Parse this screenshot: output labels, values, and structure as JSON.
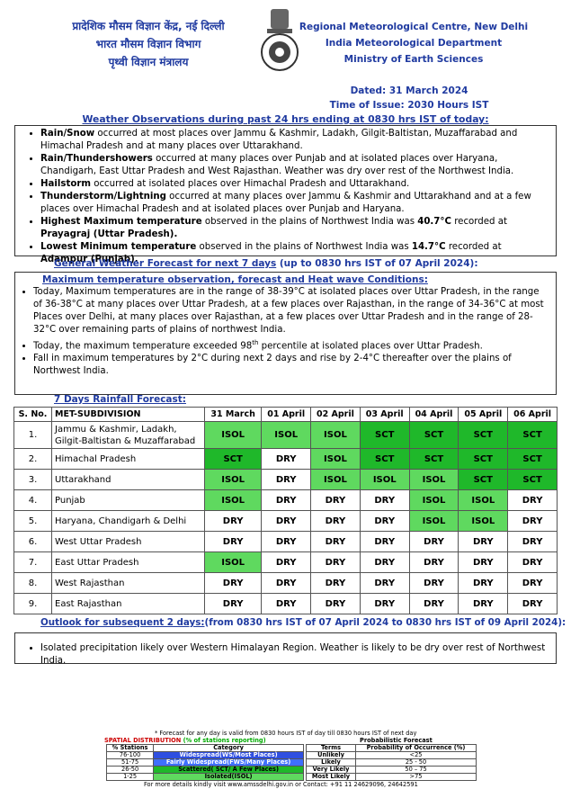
{
  "header": {
    "hindi_lines": [
      "प्रादेशिक मौसम विज्ञान केंद्र, नई दिल्ली",
      "भारत मौसम विज्ञान विभाग",
      "पृथ्वी विज्ञान मंत्रालय"
    ],
    "english_lines": [
      "Regional Meteorological Centre, New Delhi",
      "India Meteorological Department",
      "Ministry of Earth Sciences"
    ],
    "dated": "Dated: 31 March 2024",
    "time_of_issue": "Time of Issue: 2030 Hours IST"
  },
  "observations": {
    "title": "Weather Observations during past 24 hrs ending at 0830 hrs IST of today:",
    "bullets": [
      [
        {
          "text": "Rain/Snow",
          "bold": true
        },
        {
          "text": " occurred at most places over Jammu & Kashmir, Ladakh, Gilgit-Baltistan, Muzaffarabad and Himachal Pradesh and at many places over Uttarakhand."
        }
      ],
      [
        {
          "text": "Rain/Thundershowers",
          "bold": true
        },
        {
          "text": " occurred at many places over Punjab and at isolated places over Haryana, Chandigarh, East Uttar Pradesh and West Rajasthan. Weather was dry over rest of the Northwest India."
        }
      ],
      [
        {
          "text": "Hailstorm",
          "bold": true
        },
        {
          "text": " occurred at isolated places over Himachal Pradesh and Uttarakhand."
        }
      ],
      [
        {
          "text": "Thunderstorm/Lightning",
          "bold": true
        },
        {
          "text": " occurred at many places over Jammu & Kashmir and Uttarakhand and at a few places over Himachal Pradesh and at isolated places over Punjab and Haryana."
        }
      ],
      [
        {
          "text": "Highest Maximum temperature",
          "bold": true
        },
        {
          "text": " observed in the plains of Northwest India was "
        },
        {
          "text": "40.7°C",
          "bold": true
        },
        {
          "text": " recorded at "
        },
        {
          "text": "Prayagraj (Uttar Pradesh).",
          "bold": true
        }
      ],
      [
        {
          "text": "Lowest Minimum temperature",
          "bold": true
        },
        {
          "text": " observed in the plains of Northwest India was "
        },
        {
          "text": "14.7°C",
          "bold": true
        },
        {
          "text": " recorded at "
        },
        {
          "text": "Adampur (Punjab).",
          "bold": true
        }
      ]
    ]
  },
  "forecast": {
    "title": "General Weather Forecast for next 7 days",
    "title_suffix": " (up to 0830 hrs IST of 07 April 2024):",
    "subtitle": "Maximum temperature observation, forecast and Heat wave Conditions:",
    "bullets": [
      [
        {
          "text": "Today, Maximum temperatures are in the range of 38-39°C at isolated places over Uttar Pradesh, in the range of 36-38°C at many places over Uttar Pradesh, at a few places over Rajasthan, in the range of 34-36°C at most Places over Delhi, at many places over Rajasthan, at a few places over Uttar Pradesh and in the range of 28-32°C over remaining parts of plains of northwest India."
        }
      ],
      [
        {
          "text": "Today, the maximum temperature exceeded 98"
        },
        {
          "text": "th",
          "sup": true
        },
        {
          "text": " percentile at isolated places over Uttar Pradesh."
        }
      ],
      [
        {
          "text": "Fall in maximum temperatures by 2°C during next 2 days and rise by 2-4°C thereafter over the plains of Northwest India."
        }
      ]
    ]
  },
  "rainfall": {
    "title": "7 Days Rainfall Forecast:",
    "cell_colors": {
      "ISOL": "#5fd95f",
      "SCT": "#1fb82a"
    },
    "columns": [
      "S. No.",
      "MET-SUBDIVISION",
      "31 March",
      "01 April",
      "02 April",
      "03 April",
      "04 April",
      "05 April",
      "06 April"
    ],
    "rows": [
      {
        "no": "1.",
        "name": "Jammu & Kashmir, Ladakh, Gilgit-Baltistan & Muzaffarabad",
        "cells": [
          "ISOL",
          "ISOL",
          "ISOL",
          "SCT",
          "SCT",
          "SCT",
          "SCT"
        ]
      },
      {
        "no": "2.",
        "name": "Himachal Pradesh",
        "cells": [
          "SCT",
          "DRY",
          "ISOL",
          "SCT",
          "SCT",
          "SCT",
          "SCT"
        ]
      },
      {
        "no": "3.",
        "name": "Uttarakhand",
        "cells": [
          "ISOL",
          "DRY",
          "ISOL",
          "ISOL",
          "ISOL",
          "SCT",
          "SCT"
        ]
      },
      {
        "no": "4.",
        "name": "Punjab",
        "cells": [
          "ISOL",
          "DRY",
          "DRY",
          "DRY",
          "ISOL",
          "ISOL",
          "DRY"
        ]
      },
      {
        "no": "5.",
        "name": "Haryana, Chandigarh & Delhi",
        "cells": [
          "DRY",
          "DRY",
          "DRY",
          "DRY",
          "ISOL",
          "ISOL",
          "DRY"
        ]
      },
      {
        "no": "6.",
        "name": "West Uttar Pradesh",
        "cells": [
          "DRY",
          "DRY",
          "DRY",
          "DRY",
          "DRY",
          "DRY",
          "DRY"
        ]
      },
      {
        "no": "7.",
        "name": "East Uttar Pradesh",
        "cells": [
          "ISOL",
          "DRY",
          "DRY",
          "DRY",
          "DRY",
          "DRY",
          "DRY"
        ]
      },
      {
        "no": "8.",
        "name": "West Rajasthan",
        "cells": [
          "DRY",
          "DRY",
          "DRY",
          "DRY",
          "DRY",
          "DRY",
          "DRY"
        ]
      },
      {
        "no": "9.",
        "name": "East Rajasthan",
        "cells": [
          "DRY",
          "DRY",
          "DRY",
          "DRY",
          "DRY",
          "DRY",
          "DRY"
        ]
      }
    ]
  },
  "outlook": {
    "title": "Outlook for subsequent 2 days:",
    "title_suffix": "(from 0830 hrs IST of 07 April 2024 to 0830 hrs IST of 09 April 2024):",
    "bullets": [
      [
        {
          "text": "Isolated precipitation likely over Western Himalayan Region. Weather is likely to be dry over rest of Northwest India."
        }
      ]
    ]
  },
  "footer": {
    "note": "* Forecast for any day is valid from 0830 hours IST of day till 0830 hours IST of next day",
    "spatial_title": "SPATIAL DISTRIBUTION",
    "spatial_title_suffix": "(% of stations reporting)",
    "spatial_columns": [
      "% Stations",
      "Category"
    ],
    "spatial_rows": [
      {
        "range": "76-100",
        "category": "Widespread(WS/Most Places)",
        "color": "#2f4fe0"
      },
      {
        "range": "51-75",
        "category": "Fairly Widespread(FWS/Many Places)",
        "color": "#3f6fff"
      },
      {
        "range": "26-50",
        "category": "Scattered( SCT/ A Few Places)",
        "color": "#1fb82a"
      },
      {
        "range": "1-25",
        "category": "Isolated(ISOL)",
        "color": "#5fd95f"
      }
    ],
    "prob_title": "Probabilistic Forecast",
    "prob_columns": [
      "Terms",
      "Probability of Occurrence (%)"
    ],
    "prob_rows": [
      {
        "term": "Unlikely",
        "range": "<25"
      },
      {
        "term": "Likely",
        "range": "25 - 50"
      },
      {
        "term": "Very Likely",
        "range": "50 – 75"
      },
      {
        "term": "Most Likely",
        "range": ">75"
      }
    ],
    "contact": "For more details kindly visit www.amssdelhi.gov.in or Contact: +91 11 24629096, 24642591"
  }
}
